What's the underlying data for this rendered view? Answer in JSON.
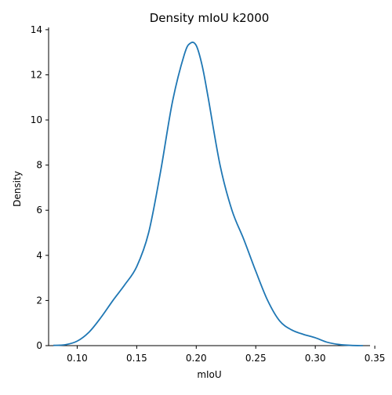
{
  "chart_data": {
    "type": "line",
    "title": "Density mIoU k2000",
    "xlabel": "mIoU",
    "ylabel": "Density",
    "xlim": [
      0.076,
      0.346
    ],
    "ylim": [
      0,
      14.1
    ],
    "xticks": [
      0.1,
      0.15,
      0.2,
      0.25,
      0.3,
      0.35
    ],
    "xtick_labels": [
      "0.10",
      "0.15",
      "0.20",
      "0.25",
      "0.30",
      "0.35"
    ],
    "yticks": [
      0,
      2,
      4,
      6,
      8,
      10,
      12,
      14
    ],
    "ytick_labels": [
      "0",
      "2",
      "4",
      "6",
      "8",
      "10",
      "12",
      "14"
    ],
    "grid": false,
    "series": [
      {
        "color": "#1f77b4",
        "x": [
          0.08,
          0.09,
          0.1,
          0.11,
          0.12,
          0.13,
          0.14,
          0.15,
          0.16,
          0.17,
          0.18,
          0.19,
          0.195,
          0.2,
          0.205,
          0.21,
          0.22,
          0.23,
          0.24,
          0.25,
          0.26,
          0.27,
          0.28,
          0.29,
          0.3,
          0.31,
          0.32,
          0.33,
          0.34
        ],
        "y": [
          0.01,
          0.04,
          0.2,
          0.6,
          1.25,
          2.0,
          2.7,
          3.5,
          5.0,
          7.7,
          10.8,
          12.9,
          13.4,
          13.3,
          12.4,
          11.0,
          8.0,
          6.0,
          4.7,
          3.3,
          2.0,
          1.1,
          0.7,
          0.5,
          0.35,
          0.15,
          0.05,
          0.01,
          0.0
        ]
      }
    ]
  }
}
